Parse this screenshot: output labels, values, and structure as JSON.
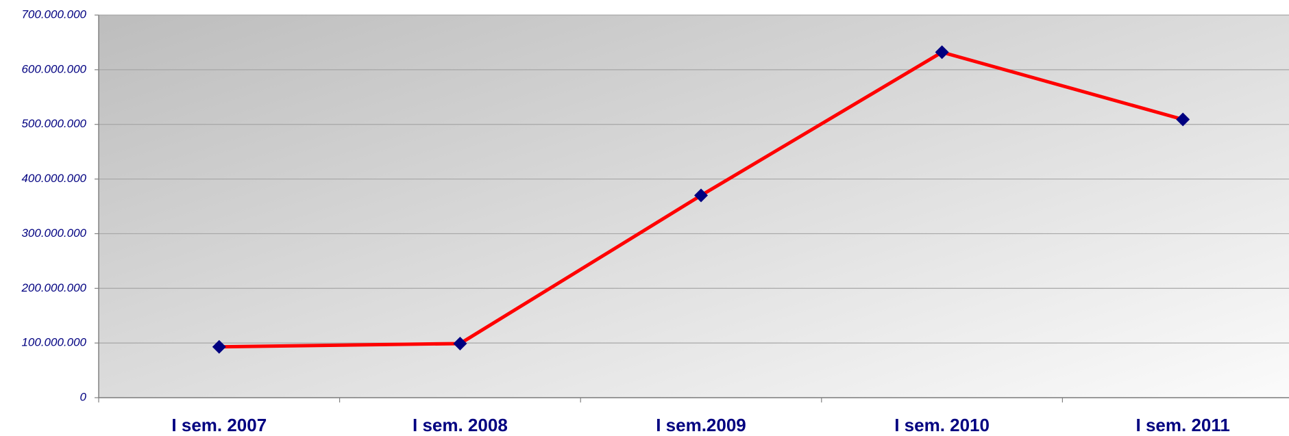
{
  "chart_data": {
    "type": "line",
    "categories": [
      "I sem. 2007",
      "I sem. 2008",
      "I sem.2009",
      "I sem. 2010",
      "I sem. 2011"
    ],
    "series": [
      {
        "color": "#ff0000",
        "marker_color": "#000080",
        "values": [
          93000000,
          99000000,
          370000000,
          632000000,
          509000000
        ]
      }
    ],
    "ylim": [
      0,
      700000000
    ],
    "yticks": [
      0,
      {
        "value": 100000000,
        "label": "100.000.000"
      },
      {
        "value": 200000000,
        "label": "200.000.000"
      },
      {
        "value": 300000000,
        "label": "300.000.000"
      },
      {
        "value": 400000000,
        "label": "400.000.000"
      },
      {
        "value": 500000000,
        "label": "500.000.000"
      },
      {
        "value": 600000000,
        "label": "600.000.000"
      },
      {
        "value": 700000000,
        "label": "700.000.000"
      }
    ],
    "grid": true
  }
}
